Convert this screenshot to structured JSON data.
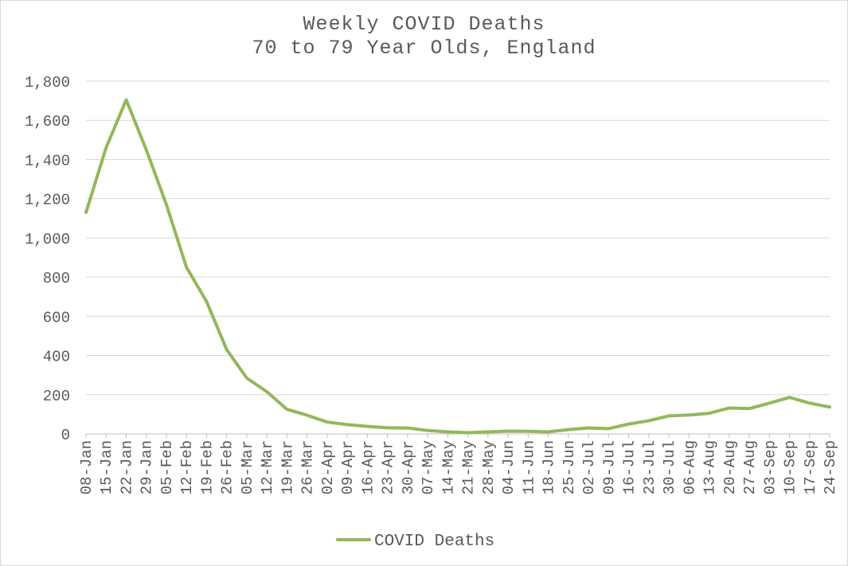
{
  "chart_data": {
    "type": "line",
    "title": "Weekly COVID Deaths",
    "subtitle": "70 to 79 Year Olds, England",
    "xlabel": "",
    "ylabel": "",
    "ylim": [
      0,
      1800
    ],
    "yticks": [
      "0",
      "200",
      "400",
      "600",
      "800",
      "1,000",
      "1,200",
      "1,400",
      "1,600",
      "1,800"
    ],
    "categories": [
      "08-Jan",
      "15-Jan",
      "22-Jan",
      "29-Jan",
      "05-Feb",
      "12-Feb",
      "19-Feb",
      "26-Feb",
      "05-Mar",
      "12-Mar",
      "19-Mar",
      "26-Mar",
      "02-Apr",
      "09-Apr",
      "16-Apr",
      "23-Apr",
      "30-Apr",
      "07-May",
      "14-May",
      "21-May",
      "28-May",
      "04-Jun",
      "11-Jun",
      "18-Jun",
      "25-Jun",
      "02-Jul",
      "09-Jul",
      "16-Jul",
      "23-Jul",
      "30-Jul",
      "06-Aug",
      "13-Aug",
      "20-Aug",
      "27-Aug",
      "03-Sep",
      "10-Sep",
      "17-Sep",
      "24-Sep"
    ],
    "series": [
      {
        "name": "COVID Deaths",
        "color": "#92b85a",
        "values": [
          1130,
          1460,
          1705,
          1450,
          1170,
          850,
          675,
          430,
          285,
          215,
          125,
          95,
          60,
          47,
          38,
          31,
          30,
          17,
          10,
          6,
          10,
          14,
          13,
          10,
          22,
          30,
          27,
          50,
          67,
          92,
          96,
          105,
          132,
          129,
          157,
          186,
          157,
          137
        ]
      }
    ],
    "grid": true,
    "legend_position": "bottom"
  }
}
